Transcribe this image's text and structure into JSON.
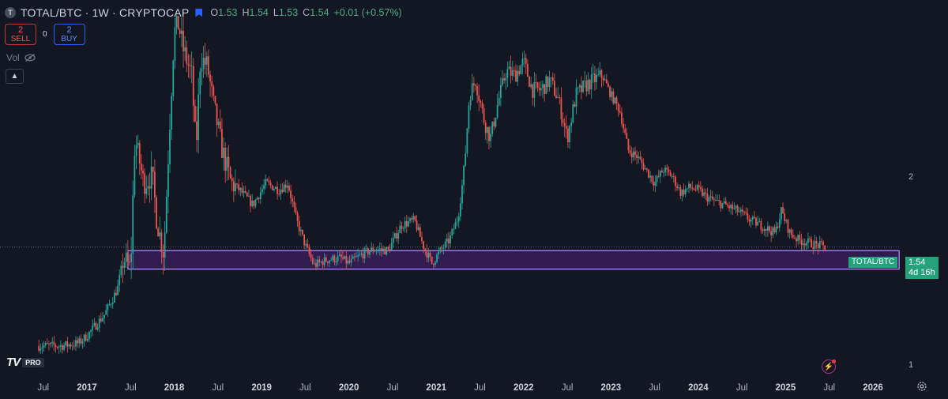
{
  "header": {
    "symbol_letter": "T",
    "title": "TOTAL/BTC · 1W · CRYPTOCAP",
    "open_label": "O",
    "open": "1.53",
    "high_label": "H",
    "high": "1.54",
    "low_label": "L",
    "low": "1.53",
    "close_label": "C",
    "close": "1.54",
    "change": "+0.01 (+0.57%)"
  },
  "trade": {
    "sell_count": "2",
    "sell_label": "SELL",
    "spread": "0",
    "buy_count": "2",
    "buy_label": "BUY"
  },
  "volume_label": "Vol",
  "logo": {
    "mark": "TV",
    "badge": "PRO"
  },
  "price_tag": {
    "symbol": "TOTAL/BTC",
    "price": "1.54",
    "countdown": "4d 16h"
  },
  "colors": {
    "up": "#26a69a",
    "down": "#ef5350",
    "zone_border": "#b388ff",
    "zone_fill": "#3b1f5e",
    "background": "#131722"
  },
  "chart_data": {
    "type": "candlestick",
    "symbol": "TOTAL/BTC",
    "interval": "1W",
    "y_scale": "log",
    "yticks": [
      1,
      2
    ],
    "ylim": [
      0.9,
      3.9
    ],
    "x_ticks": [
      "Jul",
      "2017",
      "Jul",
      "2018",
      "Jul",
      "2019",
      "Jul",
      "2020",
      "Jul",
      "2021",
      "Jul",
      "2022",
      "Jul",
      "2023",
      "Jul",
      "2024",
      "Jul",
      "2025",
      "Jul",
      "2026"
    ],
    "x_tick_dates": [
      2016.5,
      2017.0,
      2017.5,
      2018.0,
      2018.5,
      2019.0,
      2019.5,
      2020.0,
      2020.5,
      2021.0,
      2021.5,
      2022.0,
      2022.5,
      2023.0,
      2023.5,
      2024.0,
      2024.5,
      2025.0,
      2025.5,
      2026.0
    ],
    "xlim": [
      2016.2,
      2026.4
    ],
    "last_price": 1.54,
    "price_line": 1.54,
    "support_zone": {
      "from": 2017.47,
      "to": 2026.3,
      "low": 1.42,
      "high": 1.52
    },
    "path": [
      [
        2016.45,
        1.07
      ],
      [
        2016.7,
        1.07
      ],
      [
        2016.9,
        1.08
      ],
      [
        2017.0,
        1.11
      ],
      [
        2017.2,
        1.2
      ],
      [
        2017.35,
        1.32
      ],
      [
        2017.42,
        1.48
      ],
      [
        2017.5,
        1.42
      ],
      [
        2017.55,
        2.3
      ],
      [
        2017.65,
        1.95
      ],
      [
        2017.75,
        2.0
      ],
      [
        2017.8,
        1.7
      ],
      [
        2017.88,
        1.5
      ],
      [
        2017.95,
        2.45
      ],
      [
        2018.0,
        3.4
      ],
      [
        2018.05,
        3.5
      ],
      [
        2018.1,
        3.2
      ],
      [
        2018.2,
        2.9
      ],
      [
        2018.25,
        2.2
      ],
      [
        2018.3,
        3.1
      ],
      [
        2018.38,
        3.0
      ],
      [
        2018.45,
        2.6
      ],
      [
        2018.55,
        2.2
      ],
      [
        2018.65,
        1.95
      ],
      [
        2018.75,
        1.9
      ],
      [
        2018.9,
        1.8
      ],
      [
        2019.05,
        1.95
      ],
      [
        2019.2,
        1.9
      ],
      [
        2019.3,
        1.95
      ],
      [
        2019.4,
        1.7
      ],
      [
        2019.5,
        1.55
      ],
      [
        2019.6,
        1.44
      ],
      [
        2019.75,
        1.47
      ],
      [
        2019.9,
        1.48
      ],
      [
        2020.0,
        1.45
      ],
      [
        2020.15,
        1.5
      ],
      [
        2020.3,
        1.53
      ],
      [
        2020.45,
        1.52
      ],
      [
        2020.6,
        1.67
      ],
      [
        2020.75,
        1.7
      ],
      [
        2020.85,
        1.55
      ],
      [
        2020.95,
        1.45
      ],
      [
        2021.05,
        1.52
      ],
      [
        2021.15,
        1.58
      ],
      [
        2021.25,
        1.72
      ],
      [
        2021.32,
        2.05
      ],
      [
        2021.38,
        2.7
      ],
      [
        2021.45,
        2.85
      ],
      [
        2021.55,
        2.45
      ],
      [
        2021.62,
        2.3
      ],
      [
        2021.7,
        2.6
      ],
      [
        2021.8,
        2.95
      ],
      [
        2021.9,
        2.9
      ],
      [
        2022.0,
        3.05
      ],
      [
        2022.1,
        2.75
      ],
      [
        2022.2,
        2.75
      ],
      [
        2022.3,
        2.85
      ],
      [
        2022.4,
        2.65
      ],
      [
        2022.5,
        2.3
      ],
      [
        2022.6,
        2.7
      ],
      [
        2022.72,
        2.8
      ],
      [
        2022.8,
        2.85
      ],
      [
        2022.9,
        2.9
      ],
      [
        2023.0,
        2.7
      ],
      [
        2023.1,
        2.55
      ],
      [
        2023.2,
        2.2
      ],
      [
        2023.3,
        2.15
      ],
      [
        2023.4,
        2.05
      ],
      [
        2023.5,
        1.95
      ],
      [
        2023.6,
        2.05
      ],
      [
        2023.7,
        2.0
      ],
      [
        2023.8,
        1.88
      ],
      [
        2023.9,
        1.92
      ],
      [
        2024.0,
        1.9
      ],
      [
        2024.1,
        1.85
      ],
      [
        2024.2,
        1.82
      ],
      [
        2024.3,
        1.8
      ],
      [
        2024.45,
        1.76
      ],
      [
        2024.6,
        1.7
      ],
      [
        2024.75,
        1.66
      ],
      [
        2024.88,
        1.62
      ],
      [
        2024.95,
        1.76
      ],
      [
        2025.05,
        1.62
      ],
      [
        2025.15,
        1.58
      ],
      [
        2025.3,
        1.56
      ],
      [
        2025.45,
        1.54
      ]
    ]
  }
}
